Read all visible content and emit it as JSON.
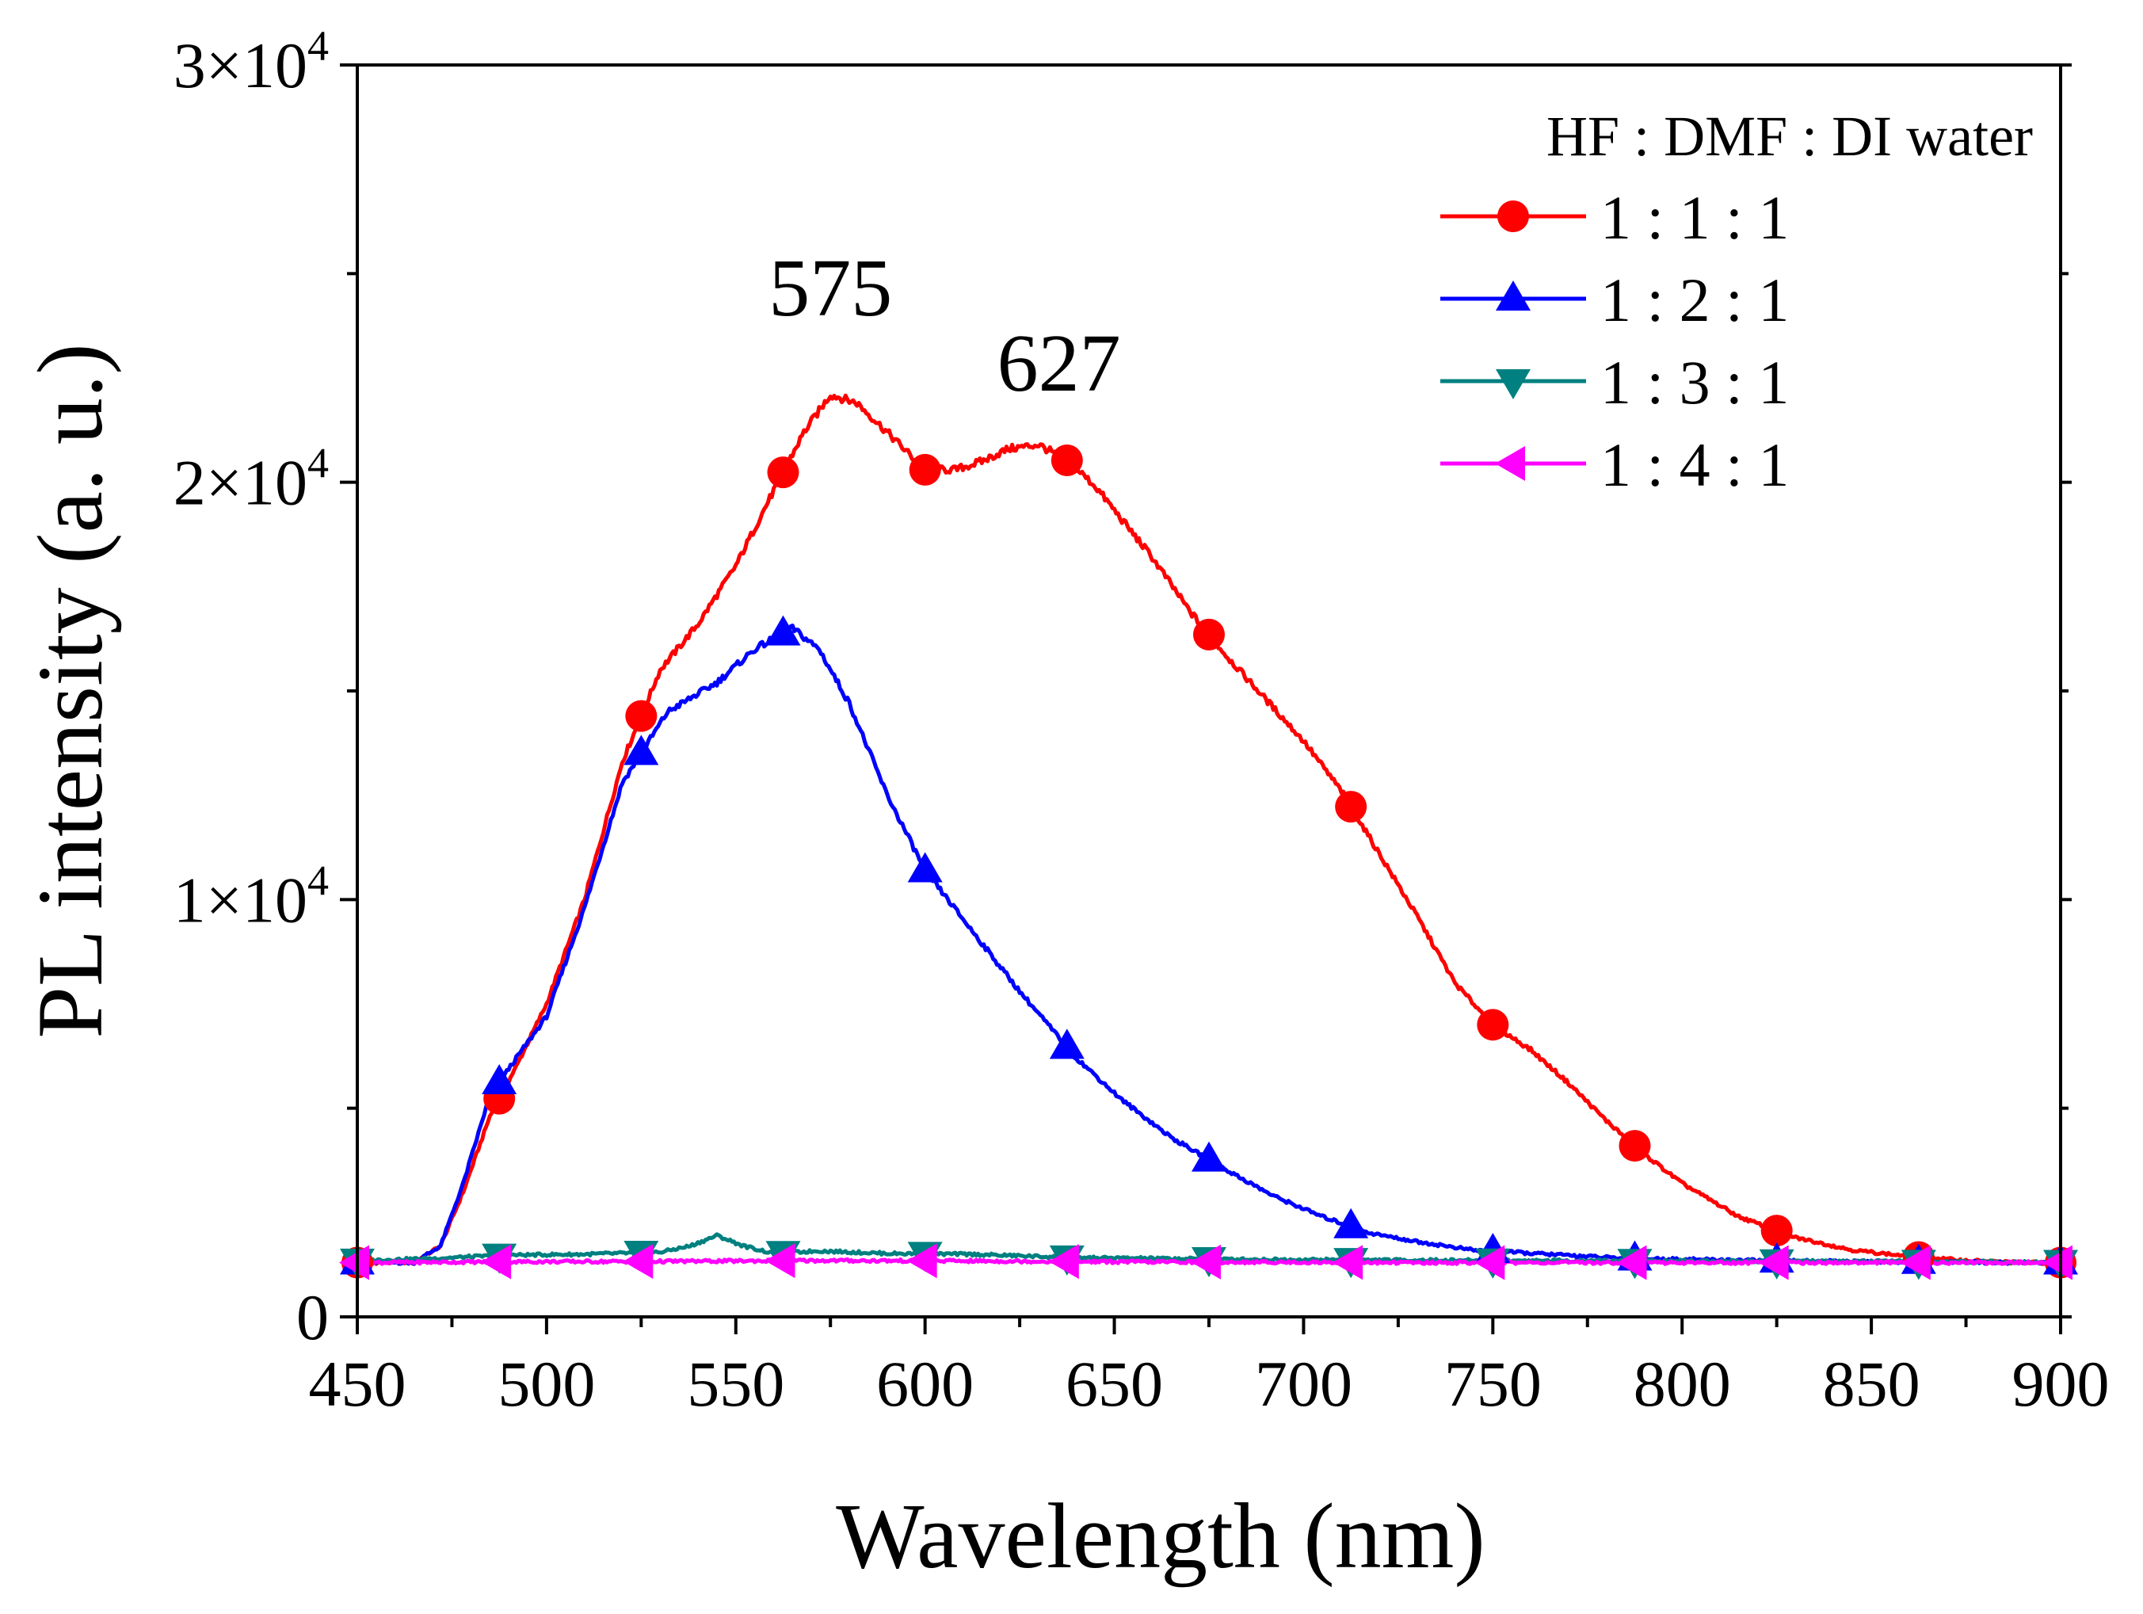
{
  "chart_data": {
    "type": "line",
    "xlabel": "Wavelength (nm)",
    "ylabel": "PL intensity (a. u.)",
    "xlim": [
      450,
      900
    ],
    "ylim": [
      0,
      30000
    ],
    "x_ticks": [
      450,
      500,
      550,
      600,
      650,
      700,
      750,
      800,
      850,
      900
    ],
    "y_ticks": [
      {
        "value": 0,
        "mantissa": "0",
        "base": "",
        "exp": ""
      },
      {
        "value": 10000,
        "mantissa": "1",
        "base": "×10",
        "exp": "4"
      },
      {
        "value": 20000,
        "mantissa": "2",
        "base": "×10",
        "exp": "4"
      },
      {
        "value": 30000,
        "mantissa": "3",
        "base": "×10",
        "exp": "4"
      }
    ],
    "legend": {
      "title": "HF : DMF : DI water",
      "position": "top-right"
    },
    "annotations": [
      {
        "text": "575",
        "x": 575,
        "y": 24000
      },
      {
        "text": "627",
        "x": 627,
        "y": 22200
      }
    ],
    "series": [
      {
        "name": "1 : 1 : 1",
        "color": "#ff0000",
        "marker": "circle",
        "x": [
          450,
          465,
          472,
          478,
          485,
          492,
          500,
          510,
          520,
          530,
          540,
          550,
          560,
          568,
          575,
          582,
          590,
          600,
          608,
          615,
          622,
          630,
          638,
          645,
          652,
          660,
          670,
          680,
          690,
          700,
          710,
          720,
          730,
          740,
          750,
          760,
          770,
          780,
          790,
          800,
          815,
          830,
          845,
          860,
          875,
          890,
          900
        ],
        "values": [
          1300,
          1300,
          1700,
          3000,
          4800,
          6000,
          7500,
          10000,
          13300,
          15500,
          16600,
          18000,
          19800,
          21200,
          22100,
          21900,
          21200,
          20300,
          20300,
          20500,
          20800,
          20900,
          20500,
          19900,
          19100,
          18200,
          16900,
          15800,
          14800,
          13800,
          12600,
          11100,
          9600,
          8000,
          7000,
          6400,
          5600,
          4700,
          3900,
          3200,
          2400,
          1900,
          1600,
          1450,
          1350,
          1300,
          1300
        ]
      },
      {
        "name": "1 : 2 : 1",
        "color": "#0000ff",
        "marker": "triangle-up",
        "x": [
          450,
          465,
          472,
          478,
          485,
          492,
          500,
          510,
          520,
          532,
          545,
          555,
          565,
          572,
          580,
          590,
          600,
          612,
          625,
          640,
          652,
          665,
          680,
          692,
          705,
          718,
          730,
          745,
          765,
          785,
          800,
          820,
          840,
          870,
          900
        ],
        "values": [
          1300,
          1300,
          1700,
          3200,
          5300,
          6200,
          7200,
          9800,
          12800,
          14500,
          15200,
          16000,
          16500,
          16000,
          14700,
          12500,
          10700,
          9300,
          7800,
          6200,
          5200,
          4300,
          3500,
          2900,
          2400,
          2000,
          1800,
          1600,
          1500,
          1400,
          1380,
          1350,
          1330,
          1310,
          1300
        ]
      },
      {
        "name": "1 : 3 : 1",
        "color": "#008080",
        "marker": "triangle-down",
        "x": [
          450,
          470,
          490,
          510,
          530,
          538,
          545,
          552,
          560,
          572,
          590,
          612,
          640,
          680,
          720,
          760,
          800,
          840,
          870,
          900
        ],
        "values": [
          1350,
          1400,
          1480,
          1500,
          1550,
          1700,
          1950,
          1700,
          1520,
          1580,
          1520,
          1500,
          1420,
          1380,
          1360,
          1350,
          1340,
          1330,
          1320,
          1320
        ]
      },
      {
        "name": "1 : 4 : 1",
        "color": "#ff00ff",
        "marker": "triangle-left",
        "x": [
          450,
          490,
          530,
          570,
          610,
          650,
          690,
          730,
          770,
          810,
          850,
          900
        ],
        "values": [
          1300,
          1320,
          1330,
          1350,
          1340,
          1320,
          1310,
          1300,
          1300,
          1300,
          1300,
          1300
        ]
      }
    ]
  }
}
